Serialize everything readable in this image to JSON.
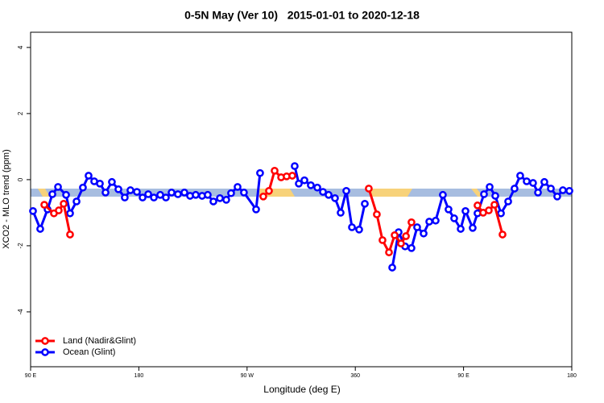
{
  "chart_data": {
    "type": "line",
    "title": "0-5N May (Ver 10)   2015-01-01 to 2020-12-18",
    "x_label": "Longitude (deg E)",
    "y_label": "XCO2 - MLO trend (ppm)",
    "xlim": [
      90,
      540
    ],
    "xticks": [
      {
        "value": 90,
        "label": "90 E"
      },
      {
        "value": 180,
        "label": "180"
      },
      {
        "value": 270,
        "label": "90 W"
      },
      360,
      {
        "value": 450,
        "label": "90 E"
      },
      {
        "value": 540,
        "label": "180"
      }
    ],
    "ylim": [
      -5.66,
      4.46
    ],
    "yticks": [
      -4,
      -2,
      0,
      2,
      4
    ],
    "legend": "bottom-left",
    "series": [
      {
        "name": "Land (Nadir&Glint)",
        "color": "#ff0000",
        "x": [
          101.4,
          109.4,
          113.4,
          117.5,
          122.8,
          null,
          283.5,
          288.2,
          292.9,
          298.3,
          302.9,
          307.6,
          null,
          371.2,
          377.9,
          382.6,
          388.0,
          392.7,
          398.0,
          402.1,
          406.7,
          null,
          461.6,
          466.3,
          471.0,
          475.7,
          482.4
        ],
        "values": [
          -0.76,
          -1.02,
          -0.93,
          -0.73,
          -1.66,
          null,
          -0.51,
          -0.34,
          0.27,
          0.07,
          0.1,
          0.12,
          null,
          -0.27,
          -1.05,
          -1.83,
          -2.2,
          -1.68,
          -1.93,
          -1.71,
          -1.29,
          null,
          -0.78,
          -1.0,
          -0.93,
          -0.76,
          -1.66
        ]
      },
      {
        "name": "Ocean (Glint)",
        "color": "#0000ff",
        "x": [
          92.0,
          98.0,
          104.1,
          108.1,
          112.8,
          119.5,
          122.8,
          128.2,
          133.5,
          138.2,
          142.9,
          147.6,
          152.3,
          157.6,
          163.0,
          168.3,
          173.0,
          178.4,
          183.1,
          187.8,
          192.5,
          197.8,
          202.5,
          207.2,
          212.5,
          217.9,
          222.6,
          227.3,
          232.6,
          237.3,
          242.0,
          247.4,
          252.7,
          256.7,
          262.1,
          267.4,
          277.5,
          280.8,
          null,
          309.6,
          313.0,
          317.7,
          323.0,
          328.4,
          333.1,
          337.8,
          343.1,
          347.8,
          352.5,
          357.2,
          363.2,
          367.9,
          null,
          390.7,
          396.0,
          401.4,
          406.7,
          411.4,
          416.8,
          421.5,
          426.8,
          432.8,
          437.5,
          442.2,
          447.6,
          451.6,
          457.6,
          461.6,
          467.0,
          471.7,
          476.4,
          481.1,
          487.1,
          492.4,
          497.1,
          502.5,
          507.8,
          511.9,
          517.2,
          522.6,
          527.9,
          532.6,
          538.0
        ],
        "values": [
          -0.95,
          -1.49,
          -0.9,
          -0.44,
          -0.22,
          -0.46,
          -1.02,
          -0.66,
          -0.24,
          0.12,
          -0.05,
          -0.12,
          -0.39,
          -0.07,
          -0.29,
          -0.54,
          -0.32,
          -0.37,
          -0.54,
          -0.44,
          -0.54,
          -0.46,
          -0.54,
          -0.39,
          -0.44,
          -0.39,
          -0.49,
          -0.46,
          -0.49,
          -0.46,
          -0.66,
          -0.56,
          -0.61,
          -0.41,
          -0.22,
          -0.39,
          -0.9,
          0.2,
          null,
          0.41,
          -0.12,
          -0.02,
          -0.17,
          -0.24,
          -0.37,
          -0.46,
          -0.56,
          -1.0,
          -0.34,
          -1.44,
          -1.51,
          -0.73,
          null,
          -2.66,
          -1.59,
          -2.02,
          -2.07,
          -1.44,
          -1.63,
          -1.27,
          -1.24,
          -0.46,
          -0.9,
          -1.17,
          -1.49,
          -0.95,
          -1.46,
          -1.02,
          -0.44,
          -0.22,
          -0.49,
          -1.02,
          -0.66,
          -0.27,
          0.12,
          -0.05,
          -0.1,
          -0.39,
          -0.07,
          -0.27,
          -0.51,
          -0.32,
          -0.34
        ]
      }
    ]
  }
}
